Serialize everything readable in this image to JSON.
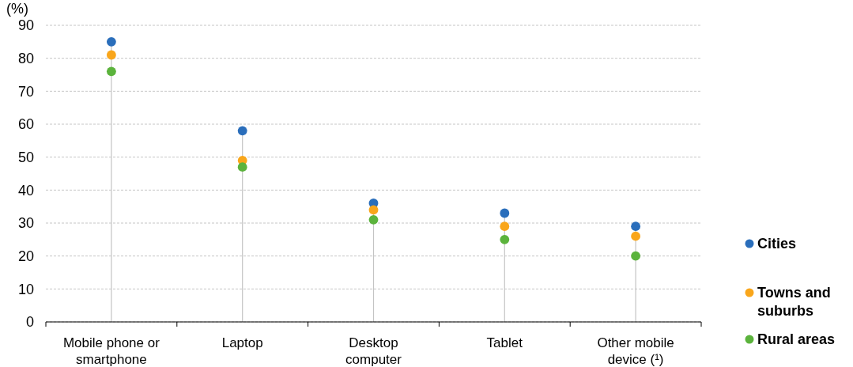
{
  "chart_data": {
    "type": "lollipop",
    "ylabel": "(%)",
    "categories": [
      "Mobile phone or smartphone",
      "Laptop",
      "Desktop computer",
      "Tablet",
      "Other mobile device (¹)"
    ],
    "series": [
      {
        "name": "Cities",
        "color": "#2a6ebb",
        "values": [
          85,
          58,
          36,
          33,
          29
        ]
      },
      {
        "name": "Towns and suburbs",
        "color": "#f9a61b",
        "values": [
          81,
          49,
          34,
          29,
          26
        ]
      },
      {
        "name": "Rural areas",
        "color": "#5bb33c",
        "values": [
          76,
          47,
          31,
          25,
          20
        ]
      }
    ],
    "ylim": [
      0,
      90
    ],
    "yticks": [
      0,
      10,
      20,
      30,
      40,
      50,
      60,
      70,
      80,
      90
    ],
    "grid": "y",
    "legend": "right",
    "marker": "circle"
  }
}
